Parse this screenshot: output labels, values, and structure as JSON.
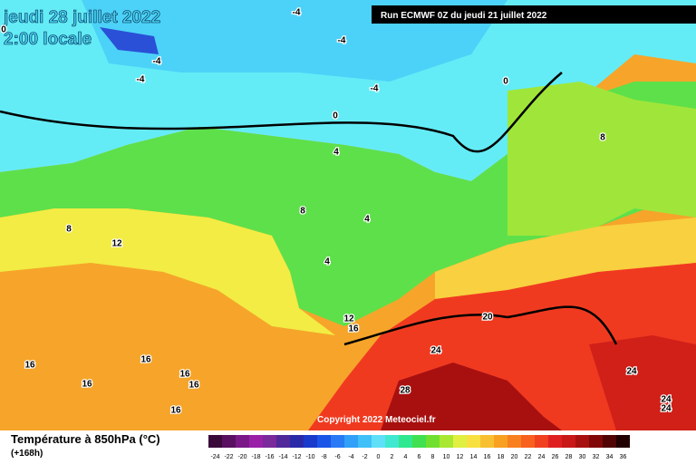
{
  "header": {
    "title": "jeudi 28 juillet 2022",
    "time": "2:00 locale",
    "run": "Run ECMWF 0Z du jeudi 21 juillet 2022"
  },
  "copyright": "Copyright 2022 Meteociel.fr",
  "footer": {
    "variable": "Température à 850hPa (°C)",
    "lead": "(+168h)"
  },
  "legend": {
    "ticks": [
      -24,
      -22,
      -20,
      -18,
      -16,
      -14,
      -12,
      -10,
      -8,
      -6,
      -4,
      -2,
      0,
      2,
      4,
      6,
      8,
      10,
      12,
      14,
      16,
      18,
      20,
      22,
      24,
      26,
      28,
      30,
      32,
      34,
      36
    ],
    "colors": [
      "#3a0a3a",
      "#5a1060",
      "#7a1888",
      "#9a20a8",
      "#7a2a9a",
      "#50289a",
      "#2a2aa8",
      "#1a3acc",
      "#1a55e8",
      "#2a7af5",
      "#30a0f8",
      "#40c0f8",
      "#60e0f8",
      "#40e8d0",
      "#30e890",
      "#40e050",
      "#70e030",
      "#a8e830",
      "#e0f040",
      "#f8e040",
      "#f8c030",
      "#f8a020",
      "#f88020",
      "#f86020",
      "#f04020",
      "#e02020",
      "#c81818",
      "#a81010",
      "#800808",
      "#500404",
      "#200000"
    ]
  },
  "contour_labels": [
    -4,
    -4,
    -4,
    -4,
    -4,
    0,
    0,
    0,
    4,
    8,
    8,
    8,
    4,
    12,
    4,
    12,
    16,
    20,
    24,
    24,
    28,
    16,
    16,
    16,
    16,
    16,
    16,
    24,
    24
  ]
}
